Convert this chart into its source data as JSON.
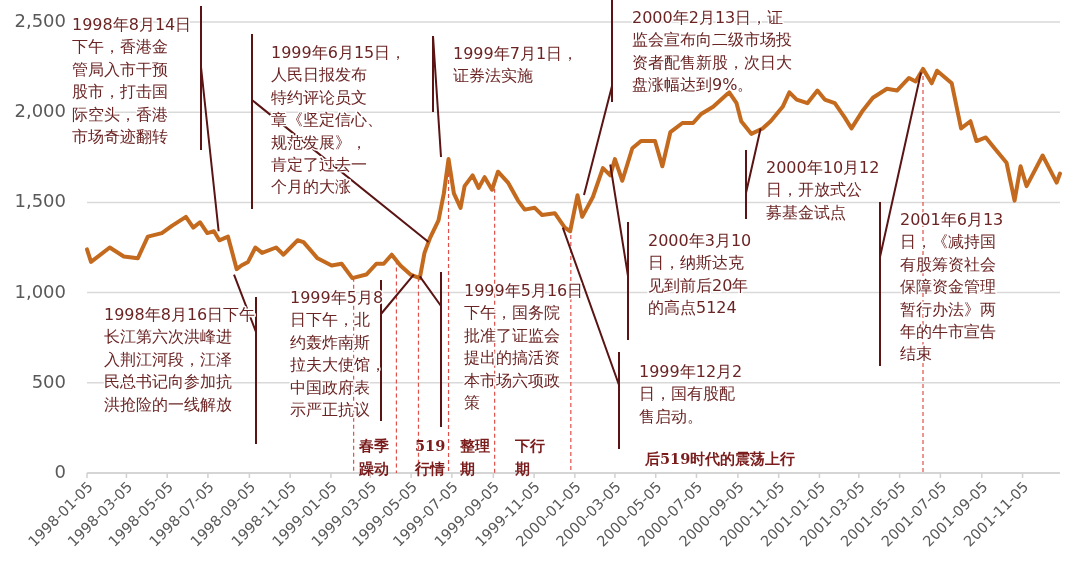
{
  "chart_data": {
    "type": "line",
    "x": [
      "1998-01-05",
      "1998-01-11",
      "1998-02-08",
      "1998-03-01",
      "1998-03-22",
      "1998-04-06",
      "1998-04-27",
      "1998-05-12",
      "1998-06-02",
      "1998-06-13",
      "1998-06-23",
      "1998-07-04",
      "1998-07-14",
      "1998-07-22",
      "1998-08-04",
      "1998-08-17",
      "1998-08-24",
      "1998-09-03",
      "1998-09-14",
      "1998-09-24",
      "1998-10-15",
      "1998-10-26",
      "1998-11-16",
      "1998-11-25",
      "1998-12-16",
      "1999-01-06",
      "1999-01-21",
      "1999-02-06",
      "1999-02-27",
      "1999-03-14",
      "1999-03-25",
      "1999-04-06",
      "1999-04-19",
      "1999-05-04",
      "1999-05-18",
      "1999-05-25",
      "1999-06-02",
      "1999-06-15",
      "1999-06-23",
      "1999-06-30",
      "1999-07-08",
      "1999-07-18",
      "1999-07-24",
      "1999-08-05",
      "1999-08-14",
      "1999-08-23",
      "1999-09-03",
      "1999-09-12",
      "1999-09-27",
      "1999-10-12",
      "1999-10-22",
      "1999-11-06",
      "1999-11-17",
      "1999-12-06",
      "1999-12-21",
      "1999-12-29",
      "2000-01-09",
      "2000-01-16",
      "2000-02-01",
      "2000-02-16",
      "2000-02-27",
      "2000-03-05",
      "2000-03-16",
      "2000-03-31",
      "2000-04-13",
      "2000-05-04",
      "2000-05-15",
      "2000-05-27",
      "2000-06-14",
      "2000-06-30",
      "2000-07-12",
      "2000-07-30",
      "2000-08-23",
      "2000-09-03",
      "2000-09-10",
      "2000-09-25",
      "2000-10-12",
      "2000-10-24",
      "2000-11-11",
      "2000-11-21",
      "2000-12-02",
      "2000-12-18",
      "2001-01-02",
      "2001-01-13",
      "2001-01-28",
      "2001-02-12",
      "2001-02-22",
      "2001-03-11",
      "2001-03-26",
      "2001-04-16",
      "2001-05-01",
      "2001-05-19",
      "2001-05-29",
      "2001-06-09",
      "2001-06-22",
      "2001-06-30",
      "2001-07-22",
      "2001-08-05",
      "2001-08-19",
      "2001-08-28",
      "2001-09-11",
      "2001-09-24",
      "2001-10-12",
      "2001-10-24",
      "2001-11-02",
      "2001-11-11",
      "2001-12-05",
      "2001-12-26",
      "2001-12-31"
    ],
    "series": [
      {
        "color": "#c46a1e",
        "values": [
          1240,
          1170,
          1250,
          1200,
          1190,
          1310,
          1330,
          1370,
          1420,
          1360,
          1390,
          1330,
          1340,
          1290,
          1310,
          1130,
          1150,
          1170,
          1250,
          1220,
          1250,
          1210,
          1290,
          1280,
          1190,
          1150,
          1160,
          1080,
          1100,
          1160,
          1160,
          1210,
          1150,
          1100,
          1080,
          1220,
          1300,
          1400,
          1550,
          1740,
          1550,
          1470,
          1590,
          1650,
          1580,
          1640,
          1570,
          1670,
          1610,
          1510,
          1460,
          1470,
          1430,
          1440,
          1360,
          1340,
          1540,
          1420,
          1530,
          1690,
          1650,
          1740,
          1620,
          1800,
          1840,
          1840,
          1700,
          1890,
          1940,
          1940,
          1990,
          2030,
          2110,
          2050,
          1950,
          1880,
          1910,
          1950,
          2030,
          2110,
          2070,
          2050,
          2120,
          2070,
          2050,
          1970,
          1910,
          2010,
          2080,
          2130,
          2120,
          2190,
          2170,
          2240,
          2160,
          2230,
          2160,
          1910,
          1950,
          1840,
          1860,
          1800,
          1720,
          1510,
          1700,
          1590,
          1760,
          1610,
          1660
        ]
      }
    ],
    "xlim": [
      "1998-01-05",
      "2001-12-31"
    ],
    "xticks": [
      "1998-01-05",
      "1998-03-05",
      "1998-05-05",
      "1998-07-05",
      "1998-09-05",
      "1998-11-05",
      "1999-01-05",
      "1999-03-05",
      "1999-05-05",
      "1999-07-05",
      "1999-09-05",
      "1999-11-05",
      "2000-01-05",
      "2000-03-05",
      "2000-05-05",
      "2000-07-05",
      "2000-09-05",
      "2000-11-05",
      "2001-01-05",
      "2001-03-05",
      "2001-05-05",
      "2001-07-05",
      "2001-09-05",
      "2001-11-05"
    ],
    "ylim": [
      0,
      2500
    ],
    "yticks": [
      0,
      500,
      {
        "value": 1000,
        "label": "1,000"
      },
      {
        "value": 1500,
        "label": "1,500"
      },
      {
        "value": 2000,
        "label": "2,000"
      },
      {
        "value": 2500,
        "label": "2,500"
      }
    ],
    "grid": "y",
    "ref_lines": [
      {
        "axis": "x",
        "value": "1999-02-08",
        "color": "#e0504a",
        "line_style": "dashed"
      },
      {
        "axis": "x",
        "value": "1999-04-13",
        "color": "#e0504a",
        "line_style": "dashed"
      },
      {
        "axis": "x",
        "value": "1999-05-16",
        "color": "#e0504a",
        "line_style": "dashed"
      },
      {
        "axis": "x",
        "value": "1999-06-30",
        "color": "#e0504a",
        "line_style": "dashed"
      },
      {
        "axis": "x",
        "value": "1999-09-07",
        "color": "#e0504a",
        "line_style": "dashed"
      },
      {
        "axis": "x",
        "value": "1999-12-30",
        "color": "#e0504a",
        "line_style": "dashed"
      },
      {
        "axis": "x",
        "value": "2001-06-09",
        "color": "#e0504a",
        "line_style": "dashed"
      }
    ],
    "annotations": [
      {
        "text": "1998年8月14日下午，香港金管局入市干预股市，打击国际空头，香港市场奇迹翻转",
        "x": "1998-07-21",
        "y": 1340
      },
      {
        "text": "1999年6月15日，人民日报发布特约评论员文章《坚定信心、规范发展》，肯定了过去一个月的大涨",
        "x": "1999-05-31",
        "y": 1280
      },
      "1999年7月1日，证券法实施",
      "2000年2月13日，证监会宣布向二级市场投资者配售新股，次日大盘涨幅达到9%。",
      {
        "text": "2000年3月10日，纳斯达克见到前后20年的高点5124",
        "x": "2000-02-27",
        "y": 1710
      },
      {
        "text": "1999年12月2日，国有股配售启动。",
        "x": "1999-12-18",
        "y": 1360
      },
      {
        "text": "2000年10月12日，开放式公募基金试点",
        "x": "2000-10-09",
        "y": 1910
      },
      {
        "text": "2001年6月13日，《减持国有股筹资社会保障资金管理暂行办法》两年的牛市宣告结束",
        "x": "2001-06-06",
        "y": 2220
      },
      {
        "text": "1998年8月16日下午长江第六次洪峰进入荆江河段，江泽民总书记向参加抗洪抢险的一线解放",
        "x": "1998-08-13",
        "y": 1100
      },
      {
        "text": "1999年5月8日下午，北约轰炸南斯拉夫大使馆，中国政府表示严正抗议",
        "x": "1999-05-09",
        "y": 1100
      },
      {
        "text": "1999年5月16日下午，国务院批准了证监会提出的搞活资本市场六项政策",
        "x": "1999-05-18",
        "y": 1090
      },
      "春季躁动",
      "519行情",
      "整理期",
      "下行期",
      "后519时代的震荡上行"
    ]
  }
}
